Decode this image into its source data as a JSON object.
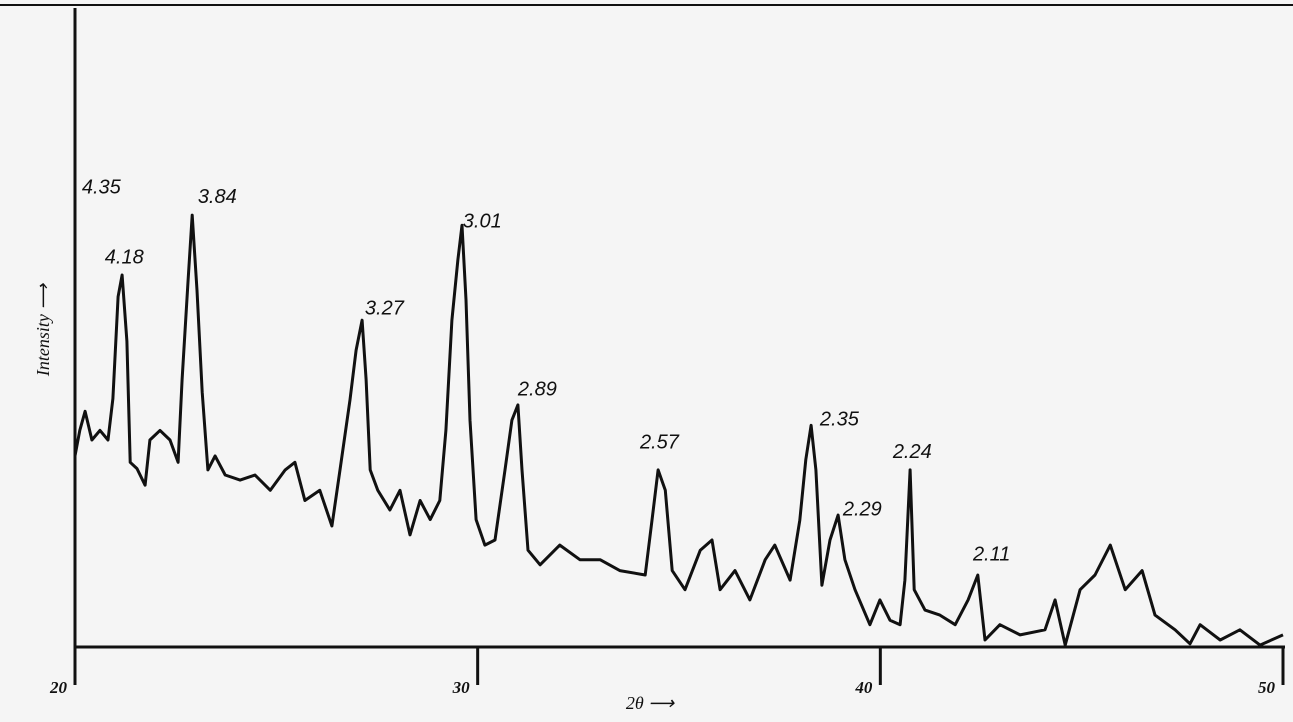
{
  "chart_data": {
    "type": "line",
    "xlabel": "2θ ⟶",
    "ylabel": "Intensity ⟶",
    "x": [
      20.0,
      20.12,
      20.25,
      20.42,
      20.62,
      20.82,
      20.94,
      21.07,
      21.17,
      21.29,
      21.37,
      21.54,
      21.74,
      21.86,
      22.11,
      22.36,
      22.56,
      22.66,
      22.81,
      22.91,
      23.03,
      23.16,
      23.3,
      23.48,
      23.73,
      24.1,
      24.47,
      24.85,
      25.22,
      25.46,
      25.71,
      26.08,
      26.38,
      26.58,
      26.83,
      26.98,
      27.13,
      27.23,
      27.33,
      27.52,
      27.82,
      28.07,
      28.32,
      28.57,
      28.82,
      29.06,
      29.21,
      29.36,
      29.51,
      29.61,
      29.71,
      29.81,
      29.96,
      30.18,
      30.43,
      30.68,
      30.85,
      31.0,
      31.1,
      31.25,
      31.55,
      32.04,
      32.54,
      33.04,
      33.53,
      34.16,
      34.33,
      34.48,
      34.66,
      34.83,
      35.15,
      35.53,
      35.82,
      36.02,
      36.39,
      36.76,
      37.14,
      37.38,
      37.76,
      38.0,
      38.15,
      38.28,
      38.4,
      38.55,
      38.75,
      38.95,
      39.12,
      39.37,
      39.74,
      39.99,
      40.24,
      40.49,
      40.61,
      40.74,
      40.84,
      41.11,
      41.48,
      41.86,
      42.18,
      42.42,
      42.6,
      42.97,
      43.47,
      44.09,
      44.34,
      44.59,
      44.96,
      45.33,
      45.71,
      46.08,
      46.5,
      46.82,
      47.32,
      47.69,
      47.94,
      48.44,
      48.93,
      49.43,
      50.0
    ],
    "values": [
      30,
      34,
      37,
      32.5,
      34,
      32.5,
      39,
      55,
      58.4,
      48,
      29,
      28,
      25.4,
      32.5,
      34,
      32.5,
      29,
      42,
      57.6,
      67.8,
      56,
      40,
      27.8,
      30,
      27,
      26.2,
      27,
      24.6,
      27.8,
      29,
      23,
      24.6,
      19,
      27.8,
      38.8,
      46.6,
      51.3,
      42,
      27.8,
      24.6,
      21.5,
      24.6,
      17.6,
      23,
      20,
      23,
      34,
      51.3,
      60.8,
      66.2,
      54.5,
      35.6,
      20,
      16,
      16.8,
      27.8,
      35.6,
      38,
      27.8,
      15.2,
      12.9,
      16,
      13.7,
      13.7,
      12,
      11.3,
      19.9,
      27.8,
      24.6,
      12,
      9,
      15.2,
      16.8,
      9,
      12,
      7.4,
      13.7,
      16,
      10.5,
      19.9,
      29.4,
      34.8,
      27.8,
      9.7,
      16.8,
      20.7,
      13.7,
      9,
      3.5,
      7.4,
      4.2,
      3.5,
      10.5,
      27.8,
      9,
      5.8,
      5,
      3.5,
      7.4,
      11.3,
      1.1,
      3.5,
      1.9,
      2.7,
      7.4,
      0.3,
      9,
      11.3,
      16,
      9,
      12,
      5,
      2.7,
      0.5,
      3.5,
      1.1,
      2.7,
      0.3,
      1.9
    ],
    "color": "#111111",
    "xlim": [
      20,
      50
    ],
    "xticks": [
      20,
      30,
      40,
      50
    ],
    "ylim": [
      0,
      100
    ],
    "annotations": [
      {
        "text": "4.35",
        "x": 20.17,
        "y": 72
      },
      {
        "text": "4.18",
        "x": 20.74,
        "y": 61
      },
      {
        "text": "3.84",
        "x": 23.05,
        "y": 70.5
      },
      {
        "text": "3.27",
        "x": 27.2,
        "y": 53
      },
      {
        "text": "3.01",
        "x": 29.63,
        "y": 66.7
      },
      {
        "text": "2.89",
        "x": 31.0,
        "y": 40.3
      },
      {
        "text": "2.57",
        "x": 34.03,
        "y": 32
      },
      {
        "text": "2.35",
        "x": 38.5,
        "y": 35.6
      },
      {
        "text": "2.29",
        "x": 39.07,
        "y": 21.5
      },
      {
        "text": "2.24",
        "x": 40.31,
        "y": 30.5
      },
      {
        "text": "2.11",
        "x": 42.3,
        "y": 14.4
      }
    ]
  }
}
